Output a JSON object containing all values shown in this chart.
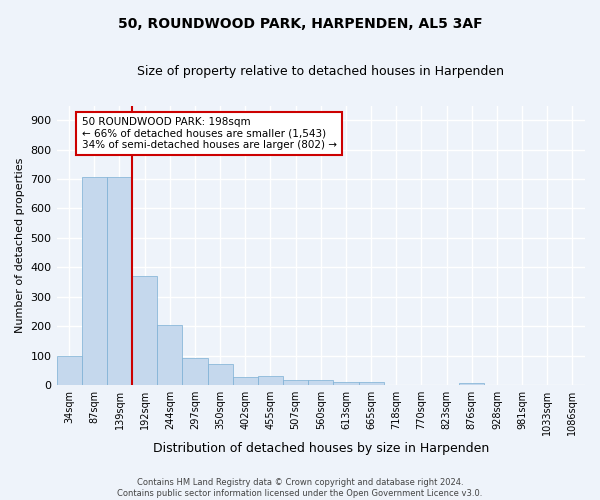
{
  "title": "50, ROUNDWOOD PARK, HARPENDEN, AL5 3AF",
  "subtitle": "Size of property relative to detached houses in Harpenden",
  "xlabel": "Distribution of detached houses by size in Harpenden",
  "ylabel": "Number of detached properties",
  "bar_color": "#c5d8ed",
  "bar_edge_color": "#7bafd4",
  "categories": [
    "34sqm",
    "87sqm",
    "139sqm",
    "192sqm",
    "244sqm",
    "297sqm",
    "350sqm",
    "402sqm",
    "455sqm",
    "507sqm",
    "560sqm",
    "613sqm",
    "665sqm",
    "718sqm",
    "770sqm",
    "823sqm",
    "876sqm",
    "928sqm",
    "981sqm",
    "1033sqm",
    "1086sqm"
  ],
  "values": [
    100,
    707,
    707,
    370,
    205,
    93,
    70,
    28,
    32,
    18,
    18,
    9,
    9,
    0,
    0,
    0,
    8,
    0,
    0,
    0,
    0
  ],
  "ylim": [
    0,
    950
  ],
  "yticks": [
    0,
    100,
    200,
    300,
    400,
    500,
    600,
    700,
    800,
    900
  ],
  "annotation_text": "50 ROUNDWOOD PARK: 198sqm\n← 66% of detached houses are smaller (1,543)\n34% of semi-detached houses are larger (802) →",
  "annotation_box_color": "#ffffff",
  "annotation_box_edge_color": "#cc0000",
  "vline_color": "#cc0000",
  "background_color": "#eef3fa",
  "grid_color": "#ffffff",
  "footer_text": "Contains HM Land Registry data © Crown copyright and database right 2024.\nContains public sector information licensed under the Open Government Licence v3.0."
}
